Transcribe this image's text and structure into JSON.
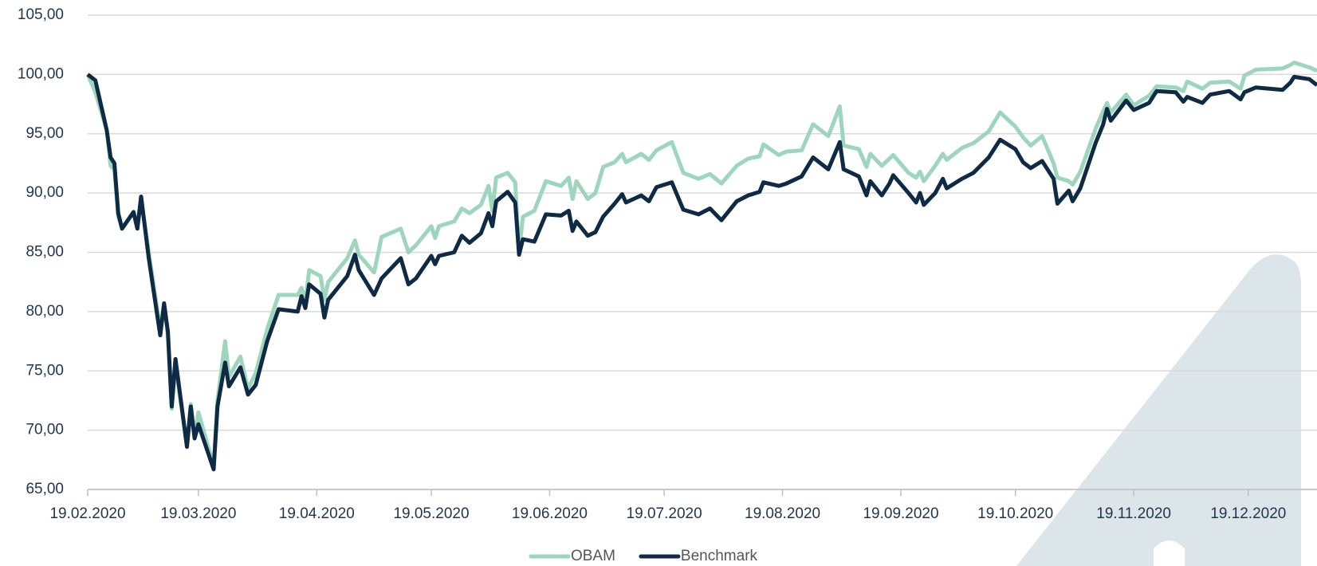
{
  "chart_data": {
    "type": "line",
    "x": [
      "19.02.2020",
      "21.02.2020",
      "24.02.2020",
      "25.02.2020",
      "26.02.2020",
      "27.02.2020",
      "28.02.2020",
      "02.03.2020",
      "03.03.2020",
      "04.03.2020",
      "06.03.2020",
      "09.03.2020",
      "10.03.2020",
      "11.03.2020",
      "12.03.2020",
      "13.03.2020",
      "16.03.2020",
      "17.03.2020",
      "18.03.2020",
      "19.03.2020",
      "23.03.2020",
      "24.03.2020",
      "26.03.2020",
      "27.03.2020",
      "30.03.2020",
      "01.04.2020",
      "03.04.2020",
      "06.04.2020",
      "09.04.2020",
      "14.04.2020",
      "15.04.2020",
      "16.04.2020",
      "17.04.2020",
      "20.04.2020",
      "21.04.2020",
      "22.04.2020",
      "27.04.2020",
      "29.04.2020",
      "30.04.2020",
      "04.05.2020",
      "06.05.2020",
      "11.05.2020",
      "13.05.2020",
      "15.05.2020",
      "19.05.2020",
      "20.05.2020",
      "21.05.2020",
      "25.05.2020",
      "27.05.2020",
      "29.05.2020",
      "01.06.2020",
      "03.06.2020",
      "04.06.2020",
      "05.06.2020",
      "08.06.2020",
      "10.06.2020",
      "11.06.2020",
      "12.06.2020",
      "15.06.2020",
      "18.06.2020",
      "22.06.2020",
      "24.06.2020",
      "25.06.2020",
      "26.06.2020",
      "29.06.2020",
      "01.07.2020",
      "03.07.2020",
      "06.07.2020",
      "08.07.2020",
      "09.07.2020",
      "13.07.2020",
      "15.07.2020",
      "17.07.2020",
      "21.07.2020",
      "24.07.2020",
      "28.07.2020",
      "31.07.2020",
      "03.08.2020",
      "07.08.2020",
      "10.08.2020",
      "13.08.2020",
      "14.08.2020",
      "18.08.2020",
      "20.08.2020",
      "24.08.2020",
      "27.08.2020",
      "31.08.2020",
      "03.09.2020",
      "04.09.2020",
      "08.09.2020",
      "10.09.2020",
      "11.09.2020",
      "14.09.2020",
      "16.09.2020",
      "17.09.2020",
      "21.09.2020",
      "23.09.2020",
      "24.09.2020",
      "25.09.2020",
      "28.09.2020",
      "30.09.2020",
      "01.10.2020",
      "05.10.2020",
      "08.10.2020",
      "12.10.2020",
      "15.10.2020",
      "19.10.2020",
      "21.10.2020",
      "23.10.2020",
      "26.10.2020",
      "29.10.2020",
      "30.10.2020",
      "02.11.2020",
      "03.11.2020",
      "05.11.2020",
      "09.11.2020",
      "11.11.2020",
      "12.11.2020",
      "13.11.2020",
      "17.11.2020",
      "19.11.2020",
      "23.11.2020",
      "25.11.2020",
      "30.11.2020",
      "02.12.2020",
      "03.12.2020",
      "07.12.2020",
      "09.12.2020",
      "14.12.2020",
      "17.12.2020",
      "18.12.2020",
      "21.12.2020",
      "28.12.2020",
      "30.12.2020",
      "31.12.2020",
      "04.01.2021",
      "06.01.2021"
    ],
    "series": [
      {
        "name": "OBAM",
        "color": "#9dd6bd",
        "values": [
          100,
          98.5,
          95.3,
          92.3,
          92,
          88,
          87,
          88.4,
          87,
          89.5,
          85,
          78.5,
          80.5,
          78,
          71.8,
          75.5,
          68.7,
          72.2,
          69.5,
          71.5,
          67,
          72.5,
          77.5,
          74.5,
          76.2,
          73.5,
          74.8,
          78.5,
          81.4,
          81.4,
          82,
          80.8,
          83.5,
          83,
          81,
          82.5,
          84.5,
          86,
          84.8,
          83.3,
          86.3,
          87,
          85,
          85.6,
          87.2,
          86.2,
          87.2,
          87.6,
          88.7,
          88.3,
          89,
          90.6,
          88.5,
          91.3,
          91.7,
          90.9,
          85,
          88,
          88.5,
          91,
          90.6,
          91.3,
          89.5,
          91,
          89.5,
          90,
          92.2,
          92.6,
          93.3,
          92.6,
          93.3,
          92.8,
          93.6,
          94.3,
          91.7,
          91.2,
          91.6,
          90.8,
          92.3,
          92.9,
          93.1,
          94.1,
          93.2,
          93.5,
          93.6,
          95.8,
          94.8,
          97.3,
          94,
          93.7,
          92.2,
          93.3,
          92.3,
          92.9,
          93.2,
          91.7,
          91.3,
          91.8,
          91,
          92.3,
          93.3,
          92.8,
          93.8,
          94.2,
          95.2,
          96.8,
          95.6,
          94.7,
          94,
          94.8,
          92.5,
          91.3,
          91,
          90.7,
          91.8,
          95.4,
          96.9,
          97.6,
          96.8,
          98.3,
          97.4,
          98.2,
          99,
          98.9,
          98.6,
          99.4,
          98.8,
          99.3,
          99.4,
          98.8,
          99.9,
          100.4,
          100.5,
          100.8,
          101,
          100.6,
          100.3
        ]
      },
      {
        "name": "Benchmark",
        "color": "#0f2a44",
        "values": [
          100,
          99.5,
          95.3,
          93,
          92.5,
          88.3,
          87,
          88.4,
          87,
          89.7,
          84.5,
          78,
          80.7,
          78.3,
          72,
          76,
          68.6,
          72,
          69.3,
          70.5,
          66.7,
          72,
          75.7,
          73.7,
          75.3,
          73,
          73.8,
          77.5,
          80.2,
          80,
          81.3,
          80.3,
          82.3,
          81.5,
          79.5,
          81,
          83,
          84.8,
          83.5,
          81.4,
          82.8,
          84.5,
          82.3,
          82.8,
          84.7,
          84,
          84.7,
          85,
          86.4,
          85.8,
          86.6,
          88.3,
          87.2,
          89.3,
          90.1,
          89.2,
          84.8,
          86.1,
          85.9,
          88.2,
          88.1,
          88.5,
          86.8,
          87.6,
          86.4,
          86.7,
          88,
          89.1,
          89.9,
          89.2,
          89.8,
          89.3,
          90.5,
          90.9,
          88.6,
          88.2,
          88.7,
          87.7,
          89.3,
          89.8,
          90.1,
          90.9,
          90.6,
          90.8,
          91.4,
          93,
          92,
          94.3,
          92,
          91.4,
          89.8,
          91,
          89.8,
          90.8,
          91.5,
          90,
          89.2,
          90,
          89,
          90,
          91.2,
          90.4,
          91.2,
          91.7,
          93,
          94.5,
          93.7,
          92.6,
          92.1,
          92.7,
          91.2,
          89.1,
          90.2,
          89.3,
          90.4,
          94.2,
          95.8,
          97.1,
          96.1,
          97.8,
          97,
          97.6,
          98.6,
          98.5,
          97.7,
          98.1,
          97.6,
          98.3,
          98.6,
          97.9,
          98.5,
          98.9,
          98.7,
          99.3,
          99.8,
          99.6,
          99.1
        ]
      }
    ],
    "xlim": [
      "19.02.2020",
      "06.01.2021"
    ],
    "xticks": [
      "19.02.2020",
      "19.03.2020",
      "19.04.2020",
      "19.05.2020",
      "19.06.2020",
      "19.07.2020",
      "19.08.2020",
      "19.09.2020",
      "19.10.2020",
      "19.11.2020",
      "19.12.2020"
    ],
    "ylim": [
      65,
      105
    ],
    "yticks": [
      {
        "value": 65,
        "label": "65,00"
      },
      {
        "value": 70,
        "label": "70,00"
      },
      {
        "value": 75,
        "label": "75,00"
      },
      {
        "value": 80,
        "label": "80,00"
      },
      {
        "value": 85,
        "label": "85,00"
      },
      {
        "value": 90,
        "label": "90,00"
      },
      {
        "value": 95,
        "label": "95,00"
      },
      {
        "value": 100,
        "label": "100,00"
      },
      {
        "value": 105,
        "label": "105,00"
      }
    ],
    "grid": true,
    "legend": "bottom"
  }
}
